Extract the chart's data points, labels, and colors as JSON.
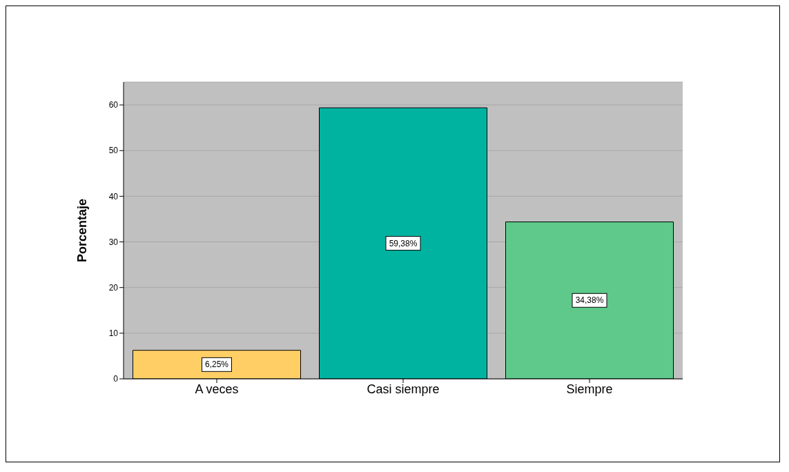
{
  "chart_data": {
    "type": "bar",
    "ylabel": "Porcentaje",
    "categories": [
      "A veces",
      "Casi siempre",
      "Siempre"
    ],
    "values": [
      6.25,
      59.38,
      34.38
    ],
    "colors": [
      "#ffcf66",
      "#00b3a0",
      "#5ec98a"
    ],
    "value_labels": [
      "6,25%",
      "59,38%",
      "34,38%"
    ],
    "ylim": [
      0,
      65
    ],
    "yticks": [
      0,
      10,
      20,
      30,
      40,
      50,
      60
    ],
    "grid": "y",
    "legend": false
  }
}
